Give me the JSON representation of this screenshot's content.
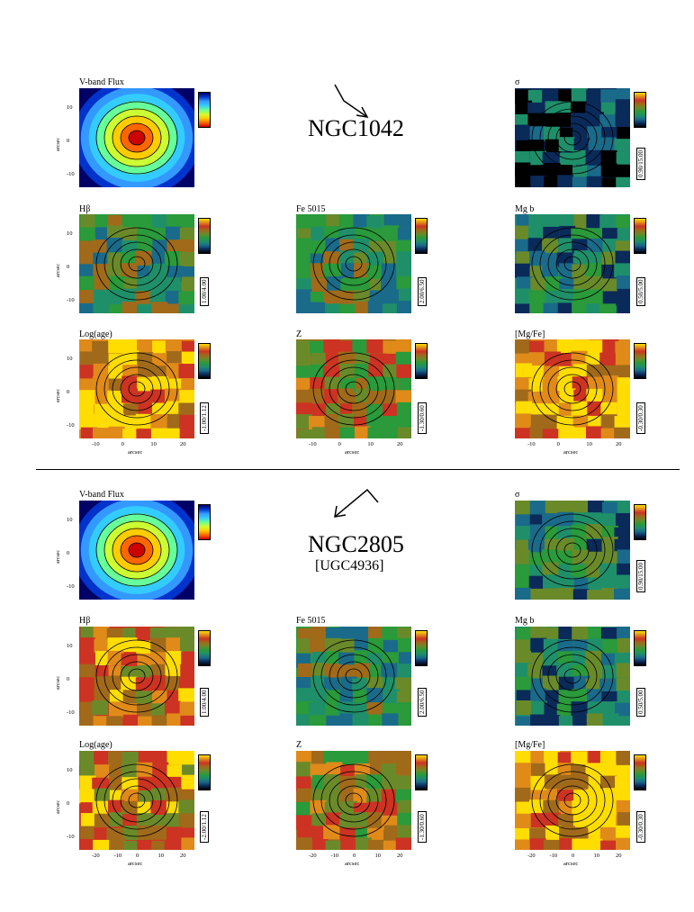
{
  "sections": [
    {
      "galaxy": "NGC1042",
      "alt_name": "",
      "panels": {
        "flux": {
          "title": "V-band Flux"
        },
        "sigma": {
          "title": "σ",
          "range": "0.90/15.00"
        },
        "hbeta": {
          "title": "Hβ",
          "range": "1.00/4.00"
        },
        "fe": {
          "title": "Fe 5015",
          "range": "2.00/6.50"
        },
        "mgb": {
          "title": "Mg b",
          "range": "0.50/5.00"
        },
        "age": {
          "title": "Log(age)",
          "range": "-1.00/1.12"
        },
        "z": {
          "title": "Z",
          "range": "-1.30/0.60"
        },
        "mgfe": {
          "title": "[Mg/Fe]",
          "range": "-0.30/0.30"
        }
      }
    },
    {
      "galaxy": "NGC2805",
      "alt_name": "[UGC4936]",
      "panels": {
        "flux": {
          "title": "V-band Flux"
        },
        "sigma": {
          "title": "σ",
          "range": "0.90/15.00"
        },
        "hbeta": {
          "title": "Hβ",
          "range": "1.00/4.00"
        },
        "fe": {
          "title": "Fe 5015",
          "range": "2.00/6.50"
        },
        "mgb": {
          "title": "Mg b",
          "range": "0.50/5.00"
        },
        "age": {
          "title": "Log(age)",
          "range": "-2.00/1.12"
        },
        "z": {
          "title": "Z",
          "range": "-1.30/0.60"
        },
        "mgfe": {
          "title": "[Mg/Fe]",
          "range": "-0.30/0.30"
        }
      }
    }
  ],
  "axes": {
    "ylabel": "arcsec",
    "xlabel": "arcsec",
    "yticks": [
      "10",
      "0",
      "-10"
    ],
    "xticks_top": [
      "-10",
      "0",
      "10",
      "20"
    ],
    "xticks_bottom": [
      "-20",
      "-10",
      "0",
      "10",
      "20"
    ]
  },
  "colors": {
    "flux_scale": [
      "#000066",
      "#0033cc",
      "#3399ff",
      "#33ccff",
      "#66ff99",
      "#ccff33",
      "#ffcc00",
      "#ff6600",
      "#cc0000"
    ],
    "index_scale": [
      "#000000",
      "#0a2a5a",
      "#1a6a8a",
      "#1f8f6a",
      "#2a9a3a",
      "#6a8a2a",
      "#a06a1a",
      "#cc3322",
      "#e08a1a",
      "#ffdd00"
    ]
  }
}
